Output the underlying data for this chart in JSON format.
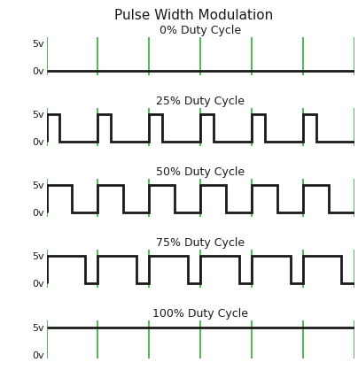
{
  "title": "Pulse Width Modulation",
  "panels": [
    {
      "label": "0% Duty Cycle",
      "duty": 0.0
    },
    {
      "label": "25% Duty Cycle",
      "duty": 0.25
    },
    {
      "label": "50% Duty Cycle",
      "duty": 0.5
    },
    {
      "label": "75% Duty Cycle",
      "duty": 0.75
    },
    {
      "label": "100% Duty Cycle",
      "duty": 1.0
    }
  ],
  "num_cycles": 6,
  "signal_color": "#1a1a1a",
  "green_line_color": "#3cb843",
  "signal_linewidth": 2.0,
  "green_linewidth": 1.3,
  "ytick_labels": [
    "5v",
    "0v"
  ],
  "ytick_values": [
    5,
    0
  ],
  "background_color": "#ffffff",
  "title_fontsize": 11,
  "label_fontsize": 9,
  "ytick_fontsize": 8,
  "ylim_low": -0.8,
  "ylim_high": 6.2
}
